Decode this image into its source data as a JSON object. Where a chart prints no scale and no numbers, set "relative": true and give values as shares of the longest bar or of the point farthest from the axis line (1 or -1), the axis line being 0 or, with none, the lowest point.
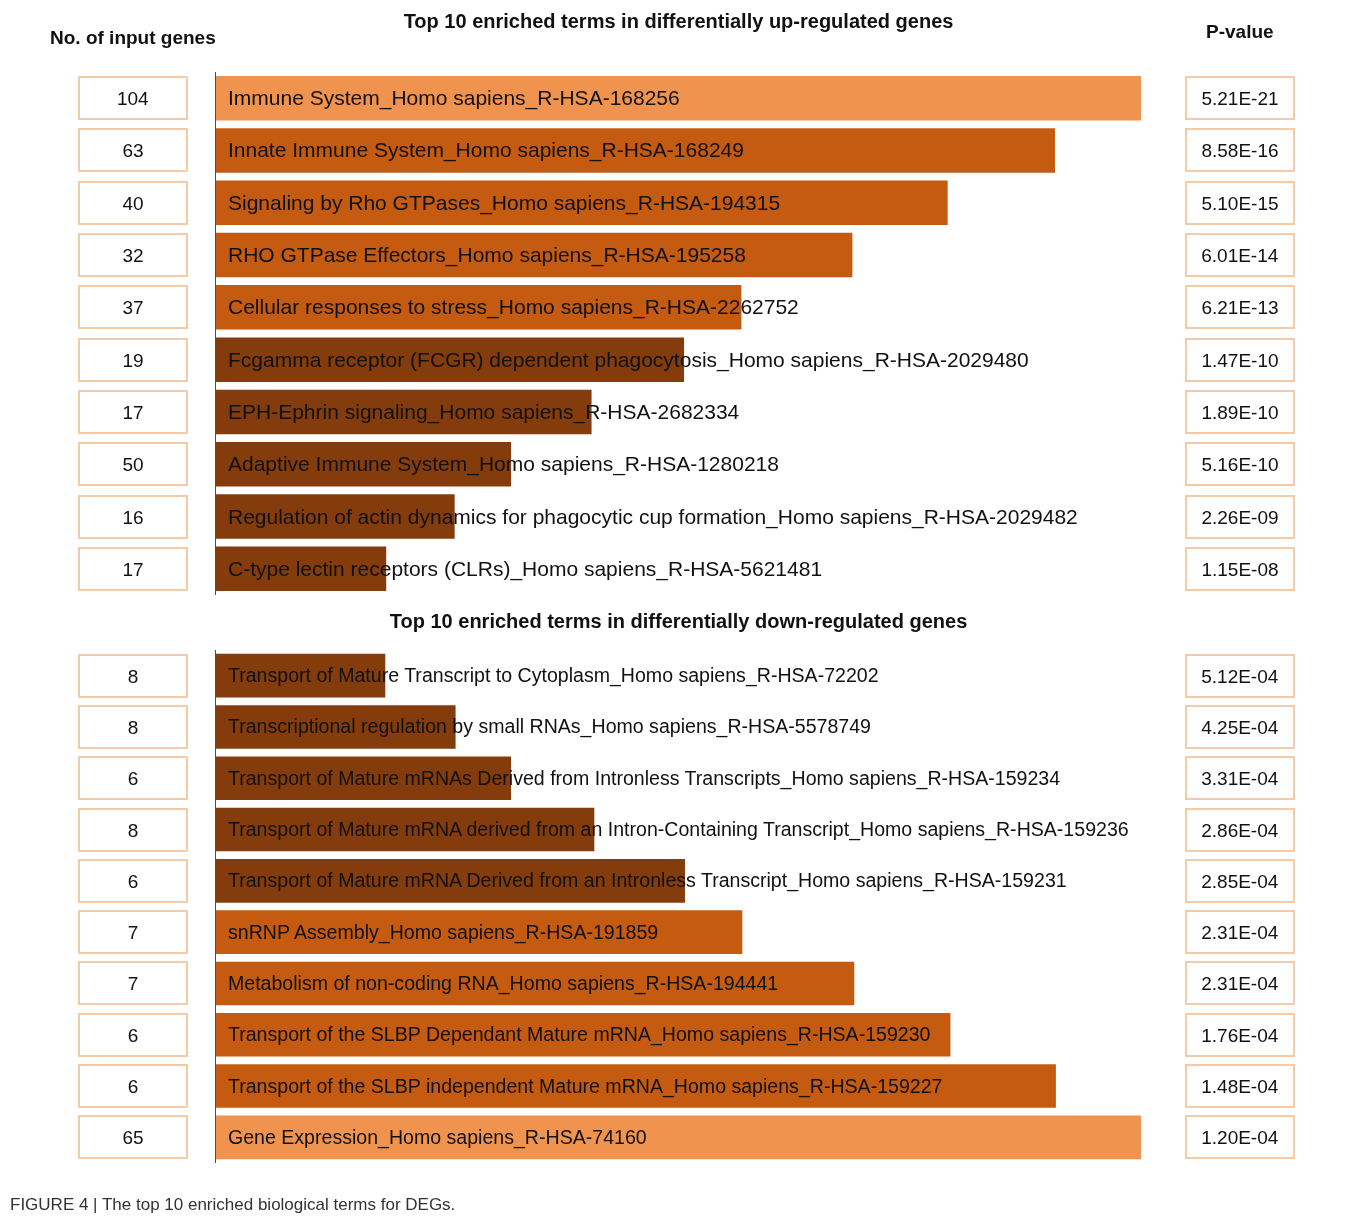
{
  "chart_data": [
    {
      "type": "bar",
      "orientation": "horizontal",
      "relative": true,
      "title": "Top 10 enriched terms in differentially up-regulated genes",
      "ylabel": "No. of input genes",
      "y2label": "P-value",
      "categories": [
        "Immune System_Homo sapiens_R-HSA-168256",
        "Innate Immune System_Homo sapiens_R-HSA-168249",
        "Signaling by Rho GTPases_Homo sapiens_R-HSA-194315",
        "RHO GTPase Effectors_Homo sapiens_R-HSA-195258",
        "Cellular responses to stress_Homo sapiens_R-HSA-2262752",
        "Fcgamma receptor (FCGR) dependent phagocytosis_Homo sapiens_R-HSA-2029480",
        "EPH-Ephrin signaling_Homo sapiens_R-HSA-2682334",
        "Adaptive Immune System_Homo sapiens_R-HSA-1280218",
        "Regulation of actin dynamics for phagocytic cup formation_Homo sapiens_R-HSA-2029482",
        "C-type lectin receptors (CLRs)_Homo sapiens_R-HSA-5621481"
      ],
      "values": [
        1,
        0.907,
        0.791,
        0.688,
        0.568,
        0.506,
        0.406,
        0.319,
        0.258,
        0.184
      ],
      "colors": [
        "#f0934f",
        "#c55a11",
        "#c55a11",
        "#c55a11",
        "#c55a11",
        "#843c0c",
        "#843c0c",
        "#843c0c",
        "#843c0c",
        "#843c0c"
      ],
      "annotations": [
        "104",
        "63",
        "40",
        "32",
        "37",
        "19",
        "17",
        "50",
        "16",
        "17",
        "5.21E-21",
        "8.58E-16",
        "5.10E-15",
        "6.01E-14",
        "6.21E-13",
        "1.47E-10",
        "1.89E-10",
        "5.16E-10",
        "2.26E-09",
        "1.15E-08"
      ]
    },
    {
      "type": "bar",
      "orientation": "horizontal",
      "relative": true,
      "title": "Top 10 enriched terms in differentially down-regulated genes",
      "categories": [
        "Transport of Mature Transcript to Cytoplasm_Homo sapiens_R-HSA-72202",
        "Transcriptional regulation by small RNAs_Homo sapiens_R-HSA-5578749",
        "Transport of Mature mRNAs Derived from Intronless Transcripts_Homo sapiens_R-HSA-159234",
        "Transport of Mature mRNA derived from an Intron-Containing Transcript_Homo sapiens_R-HSA-159236",
        "Transport of Mature mRNA Derived from an Intronless Transcript_Homo sapiens_R-HSA-159231",
        "snRNP Assembly_Homo sapiens_R-HSA-191859",
        "Metabolism of non-coding RNA_Homo sapiens_R-HSA-194441",
        "Transport of the SLBP Dependant Mature mRNA_Homo sapiens_R-HSA-159230",
        "Transport of the SLBP independent Mature mRNA_Homo sapiens_R-HSA-159227",
        "Gene Expression_Homo sapiens_R-HSA-74160"
      ],
      "values": [
        0.183,
        0.259,
        0.319,
        0.409,
        0.507,
        0.569,
        0.69,
        0.794,
        0.908,
        1
      ],
      "colors": [
        "#843c0c",
        "#843c0c",
        "#843c0c",
        "#843c0c",
        "#843c0c",
        "#c55a11",
        "#c55a11",
        "#c55a11",
        "#c55a11",
        "#f0934f"
      ],
      "annotations": [
        "8",
        "8",
        "6",
        "8",
        "6",
        "7",
        "7",
        "6",
        "6",
        "65",
        "5.12E-04",
        "4.25E-04",
        "3.31E-04",
        "2.86E-04",
        "2.85E-04",
        "2.31E-04",
        "2.31E-04",
        "1.76E-04",
        "1.48E-04",
        "1.20E-04",
        "FIGURE 4 | The top 10 enriched biological terms for DEGs."
      ]
    }
  ]
}
